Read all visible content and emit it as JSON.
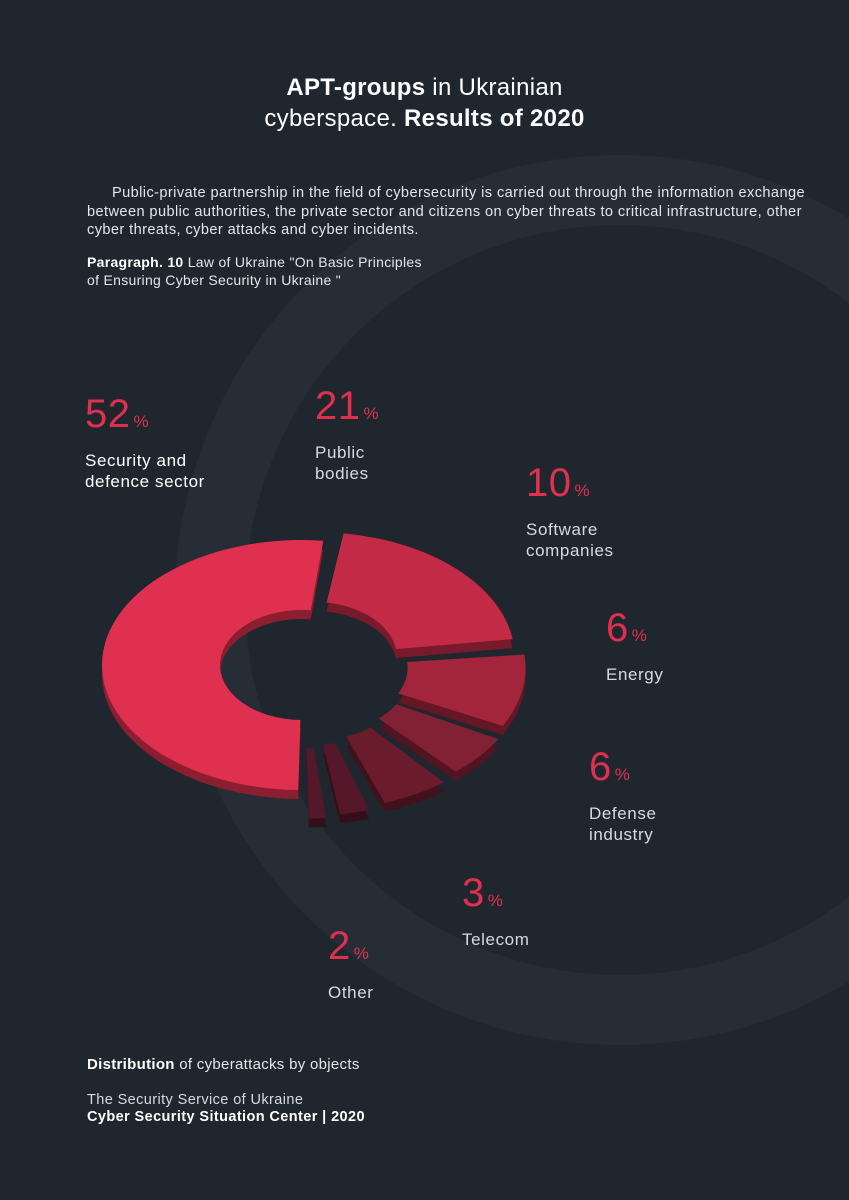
{
  "title": {
    "bold1": "APT-groups",
    "regular1": " in Ukrainian",
    "regular2": "cyberspace. ",
    "bold2": "Results of 2020"
  },
  "intro": "Public-private partnership in the field of cybersecurity is carried out through the information exchange between public authorities, the private sector and citizens on cyber threats to critical infrastructure, other cyber threats, cyber attacks and cyber incidents.",
  "source": {
    "bold": "Paragraph. 10",
    "line1": " Law of Ukraine \"On Basic Principles",
    "line2": "of Ensuring Cyber Security in Ukraine \""
  },
  "caption": {
    "bold": "Distribution",
    "rest": " of cyberattacks by objects"
  },
  "footer": {
    "line1": "The Security Service of Ukraine",
    "line2": "Cyber Security Situation Center | 2020"
  },
  "percent_sign": "%",
  "colors": {
    "background": "#20262e",
    "accent": "#e0304f",
    "slices": [
      "#e0304f",
      "#c22a45",
      "#a3253c",
      "#822034",
      "#6a1c2d",
      "#54182a"
    ]
  },
  "chart_data": {
    "type": "pie",
    "categories": [
      "Security and defence sector",
      "Public bodies",
      "Software companies",
      "Energy",
      "Defense industry",
      "Telecom",
      "Other"
    ],
    "values": [
      52,
      21,
      10,
      6,
      6,
      3,
      2
    ],
    "unit": "%"
  }
}
